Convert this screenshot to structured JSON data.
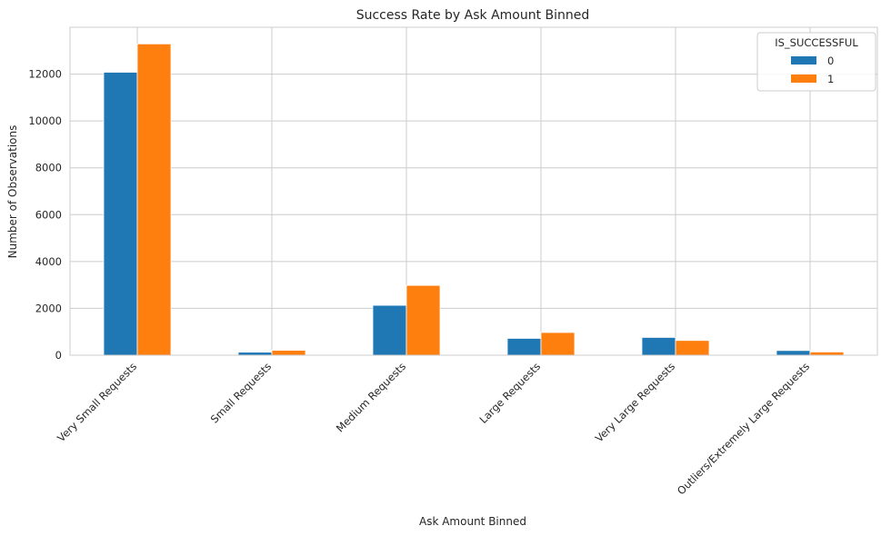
{
  "chart_data": {
    "type": "bar",
    "title": "Success Rate by Ask Amount Binned",
    "xlabel": "Ask Amount Binned",
    "ylabel": "Number of Observations",
    "categories": [
      "Very Small Requests",
      "Small Requests",
      "Medium Requests",
      "Large Requests",
      "Very Large Requests",
      "Outliers/Extremely Large Requests"
    ],
    "series": [
      {
        "name": "0",
        "color": "#1f77b4",
        "values": [
          12080,
          130,
          2130,
          720,
          760,
          200
        ]
      },
      {
        "name": "1",
        "color": "#ff7f0e",
        "values": [
          13290,
          210,
          2980,
          970,
          630,
          140
        ]
      }
    ],
    "ylim": [
      0,
      14000
    ],
    "yticks": [
      0,
      2000,
      4000,
      6000,
      8000,
      10000,
      12000
    ],
    "grid": true,
    "legend": {
      "title": "IS_SUCCESSFUL",
      "placement": "top-right"
    }
  }
}
